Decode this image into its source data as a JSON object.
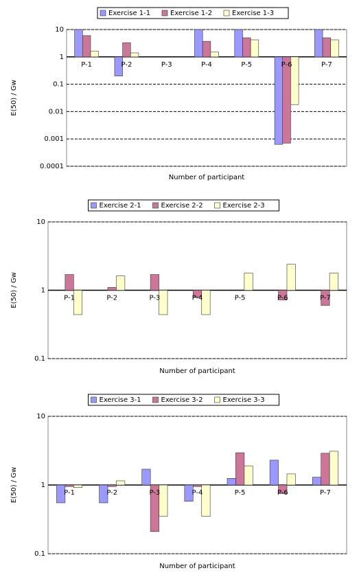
{
  "chart_data": [
    {
      "type": "bar",
      "log_scale": true,
      "grid": true,
      "legend": "top",
      "x_axis_crosses": 1,
      "x_label": "Number of participant",
      "y_label": "E(50) / Gw",
      "categories": [
        "P-1",
        "P-2",
        "P-3",
        "P-4",
        "P-5",
        "P-6",
        "P-7"
      ],
      "ylim": [
        0.0001,
        10
      ],
      "yticks": [
        0.0001,
        0.001,
        0.01,
        0.1,
        1,
        10
      ],
      "series": [
        {
          "name": "Exercise 1-1",
          "color": "#9999ff",
          "values": [
            10,
            0.2,
            null,
            10,
            10,
            0.00063,
            10
          ]
        },
        {
          "name": "Exercise 1-2",
          "color": "#cc7799",
          "values": [
            6,
            3.3,
            null,
            3.7,
            5,
            0.0007,
            5
          ]
        },
        {
          "name": "Exercise 1-3",
          "color": "#ffffcc",
          "values": [
            1.6,
            1.4,
            null,
            1.5,
            4.2,
            0.018,
            4.2
          ]
        }
      ]
    },
    {
      "type": "bar",
      "log_scale": true,
      "grid": true,
      "legend": "top",
      "x_axis_crosses": 1,
      "x_label": "Number of participant",
      "y_label": "E(50) / Gw",
      "categories": [
        "P-1",
        "P-2",
        "P-3",
        "P-4",
        "P-5",
        "P-6",
        "P-7"
      ],
      "ylim": [
        0.1,
        10
      ],
      "yticks": [
        0.1,
        1,
        10
      ],
      "series": [
        {
          "name": "Exercise 2-1",
          "color": "#9999ff",
          "values": [
            null,
            null,
            null,
            null,
            null,
            null,
            null
          ]
        },
        {
          "name": "Exercise 2-2",
          "color": "#cc7799",
          "values": [
            1.7,
            1.1,
            1.7,
            0.79,
            null,
            0.72,
            0.6
          ]
        },
        {
          "name": "Exercise 2-3",
          "color": "#ffffcc",
          "values": [
            0.44,
            1.62,
            0.44,
            0.44,
            1.78,
            2.4,
            1.78
          ]
        }
      ]
    },
    {
      "type": "bar",
      "log_scale": true,
      "grid": true,
      "legend": "top",
      "x_axis_crosses": 1,
      "x_label": "Number of participant",
      "y_label": "E(50) / Gw",
      "categories": [
        "P-1",
        "P-2",
        "P-3",
        "P-4",
        "P-5",
        "P-6",
        "P-7"
      ],
      "ylim": [
        0.1,
        10
      ],
      "yticks": [
        0.1,
        1,
        10
      ],
      "series": [
        {
          "name": "Exercise 3-1",
          "color": "#9999ff",
          "values": [
            0.55,
            0.55,
            1.7,
            0.58,
            1.25,
            2.3,
            1.3
          ]
        },
        {
          "name": "Exercise 3-2",
          "color": "#cc7799",
          "values": [
            0.95,
            0.95,
            0.21,
            0.95,
            2.95,
            0.75,
            2.9
          ]
        },
        {
          "name": "Exercise 3-3",
          "color": "#ffffcc",
          "values": [
            0.92,
            1.15,
            0.35,
            0.35,
            1.9,
            1.45,
            3.1
          ]
        }
      ]
    }
  ]
}
